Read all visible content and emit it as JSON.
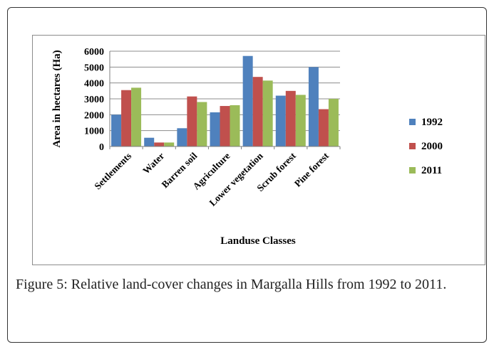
{
  "chart_data": {
    "type": "bar",
    "title": "",
    "xlabel": "Landuse Classes",
    "ylabel": "Area in hectares (Ha)",
    "ylim": [
      0,
      6000
    ],
    "yticks": [
      "0",
      "1000",
      "2000",
      "3000",
      "4000",
      "5000",
      "6000"
    ],
    "grid": true,
    "legend_position": "right",
    "categories": [
      "Settlements",
      "Water",
      "Barren soil",
      "Agriculture",
      "Lower vegetation",
      "Scrub forest",
      "Pine forest"
    ],
    "series": [
      {
        "name": "1992",
        "color": "#4f81bd",
        "values": [
          2000,
          550,
          1150,
          2150,
          5700,
          3200,
          5000
        ]
      },
      {
        "name": "2000",
        "color": "#c0504d",
        "values": [
          3550,
          250,
          3150,
          2550,
          4380,
          3500,
          2350
        ]
      },
      {
        "name": "2011",
        "color": "#9bbb59",
        "values": [
          3700,
          250,
          2800,
          2600,
          4150,
          3250,
          3000
        ]
      }
    ]
  },
  "caption": {
    "label": "Figure 5:",
    "text": " Relative land-cover changes in Margalla Hills from 1992 to 2011."
  }
}
